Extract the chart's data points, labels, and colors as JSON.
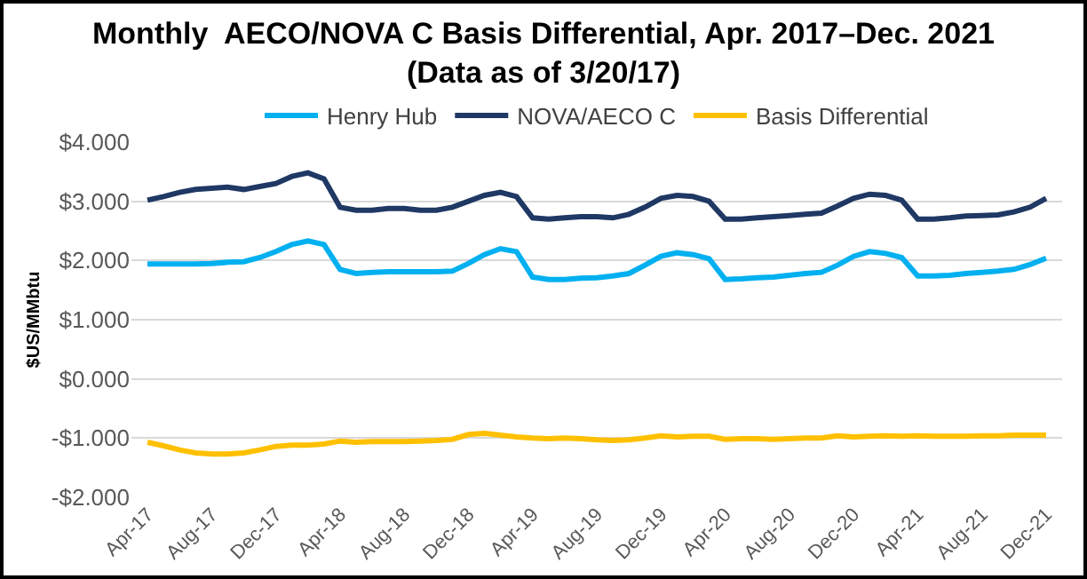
{
  "chart_data": {
    "type": "line",
    "title": "Monthly  AECO/NOVA C Basis Differential, Apr. 2017–Dec. 2021\n(Data as of 3/20/17)",
    "ylabel": "$US/MMbtu",
    "categories": [
      "Apr-17",
      null,
      null,
      null,
      "Aug-17",
      null,
      null,
      null,
      "Dec-17",
      null,
      null,
      null,
      "Apr-18",
      null,
      null,
      null,
      "Aug-18",
      null,
      null,
      null,
      "Dec-18",
      null,
      null,
      null,
      "Apr-19",
      null,
      null,
      null,
      "Aug-19",
      null,
      null,
      null,
      "Dec-19",
      null,
      null,
      null,
      "Apr-20",
      null,
      null,
      null,
      "Aug-20",
      null,
      null,
      null,
      "Dec-20",
      null,
      null,
      null,
      "Apr-21",
      null,
      null,
      null,
      "Aug-21",
      null,
      null,
      null,
      "Dec-21"
    ],
    "series": [
      {
        "name": "Henry Hub",
        "color": "#00b0f0",
        "values": [
          1.94,
          1.94,
          1.94,
          1.94,
          1.95,
          1.97,
          1.98,
          2.05,
          2.15,
          2.27,
          2.33,
          2.27,
          1.85,
          1.78,
          1.8,
          1.81,
          1.81,
          1.81,
          1.81,
          1.82,
          1.95,
          2.1,
          2.2,
          2.15,
          1.72,
          1.68,
          1.68,
          1.7,
          1.71,
          1.74,
          1.78,
          1.92,
          2.07,
          2.13,
          2.1,
          2.03,
          1.68,
          1.69,
          1.71,
          1.72,
          1.75,
          1.78,
          1.8,
          1.92,
          2.07,
          2.15,
          2.12,
          2.05,
          1.74,
          1.74,
          1.75,
          1.78,
          1.8,
          1.82,
          1.85,
          1.93,
          2.04
        ]
      },
      {
        "name": "NOVA/AECO C",
        "color": "#1f3864",
        "values": [
          3.02,
          3.08,
          3.15,
          3.2,
          3.22,
          3.24,
          3.2,
          3.25,
          3.3,
          3.42,
          3.48,
          3.38,
          2.9,
          2.85,
          2.85,
          2.88,
          2.88,
          2.85,
          2.85,
          2.9,
          3.0,
          3.1,
          3.15,
          3.08,
          2.72,
          2.7,
          2.72,
          2.74,
          2.74,
          2.72,
          2.78,
          2.9,
          3.05,
          3.1,
          3.08,
          3.0,
          2.7,
          2.7,
          2.72,
          2.74,
          2.76,
          2.78,
          2.8,
          2.92,
          3.05,
          3.12,
          3.1,
          3.02,
          2.7,
          2.7,
          2.72,
          2.75,
          2.76,
          2.77,
          2.82,
          2.9,
          3.05
        ]
      },
      {
        "name": "Basis Differential",
        "color": "#ffc000",
        "values": [
          -1.07,
          -1.13,
          -1.2,
          -1.25,
          -1.27,
          -1.27,
          -1.25,
          -1.2,
          -1.14,
          -1.12,
          -1.12,
          -1.1,
          -1.05,
          -1.07,
          -1.06,
          -1.06,
          -1.06,
          -1.05,
          -1.04,
          -1.02,
          -0.94,
          -0.92,
          -0.95,
          -0.98,
          -1.0,
          -1.01,
          -1.0,
          -1.01,
          -1.03,
          -1.04,
          -1.03,
          -1.0,
          -0.96,
          -0.98,
          -0.97,
          -0.97,
          -1.02,
          -1.01,
          -1.01,
          -1.02,
          -1.01,
          -1.0,
          -1.0,
          -0.96,
          -0.98,
          -0.97,
          -0.96,
          -0.97,
          -0.96,
          -0.97,
          -0.97,
          -0.97,
          -0.96,
          -0.96,
          -0.95,
          -0.95,
          -0.95
        ]
      }
    ],
    "ylim": [
      -2,
      4
    ],
    "yticks": [
      {
        "value": 4,
        "label": "$4.000"
      },
      {
        "value": 3,
        "label": "$3.000"
      },
      {
        "value": 2,
        "label": "$2.000"
      },
      {
        "value": 1,
        "label": "$1.000"
      },
      {
        "value": 0,
        "label": "$0.000"
      },
      {
        "value": -1,
        "label": "-$1.000"
      },
      {
        "value": -2,
        "label": "-$2.000"
      }
    ],
    "grid": "y",
    "legend": "top",
    "marker": "none",
    "line_style": "solid"
  }
}
